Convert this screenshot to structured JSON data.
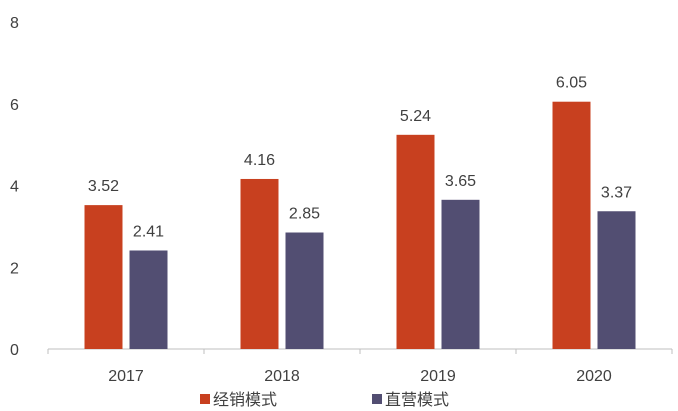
{
  "chart_data": {
    "type": "bar",
    "title": "",
    "xlabel": "",
    "ylabel": "",
    "categories": [
      "2017",
      "2018",
      "2019",
      "2020"
    ],
    "series": [
      {
        "name": "经销模式",
        "color": "#c8401f",
        "values": [
          3.52,
          4.16,
          5.24,
          6.05
        ]
      },
      {
        "name": "直营模式",
        "color": "#524e72",
        "values": [
          2.41,
          2.85,
          3.65,
          3.37
        ]
      }
    ],
    "ylim": [
      0,
      8
    ],
    "yticks": [
      0,
      2,
      4,
      6,
      8
    ],
    "grid": false,
    "legend_position": "bottom"
  }
}
